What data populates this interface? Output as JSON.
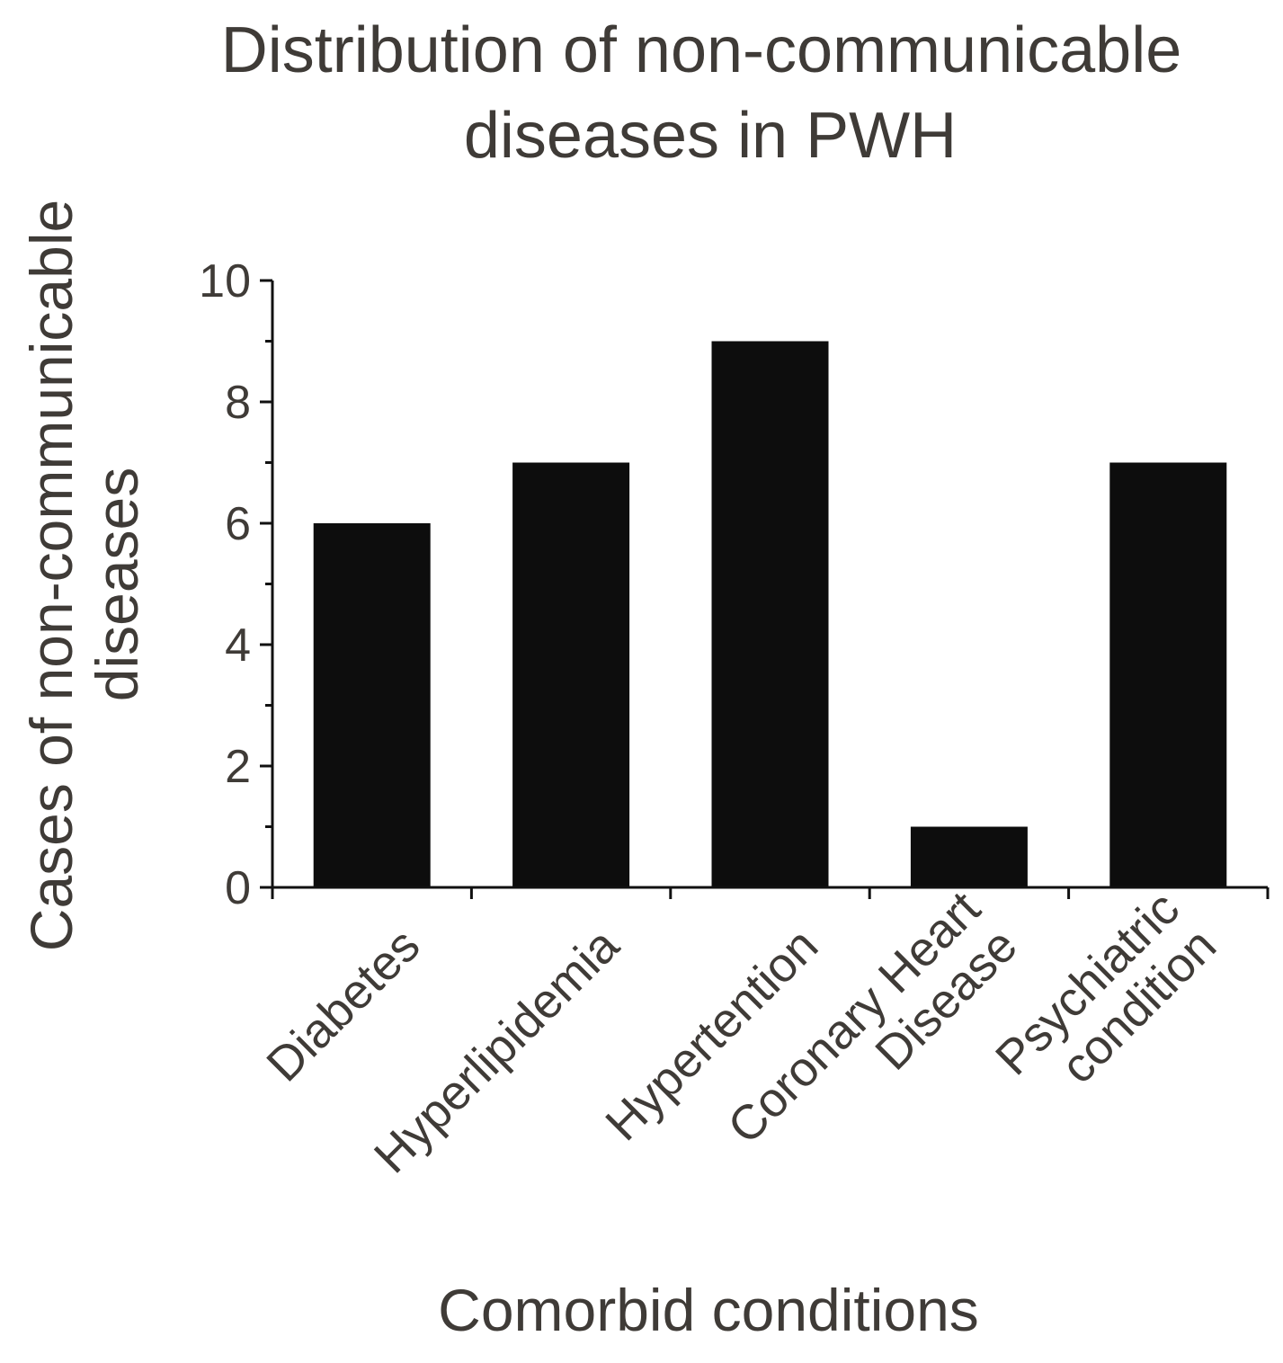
{
  "chart_data": {
    "type": "bar",
    "title_lines": [
      "Distribution of non-communicable",
      "diseases in PWH"
    ],
    "ylabel_lines": [
      "Cases of non-communicable",
      "diseases"
    ],
    "xlabel": "Comorbid conditions",
    "categories": [
      [
        "Diabetes"
      ],
      [
        "Hyperlipidemia"
      ],
      [
        "Hypertention"
      ],
      [
        "Coronary Heart",
        "Disease"
      ],
      [
        "Psychiatric",
        "condition"
      ]
    ],
    "values": [
      6,
      7,
      9,
      1,
      7
    ],
    "ylim": [
      0,
      10
    ],
    "y_ticks": [
      0,
      2,
      4,
      6,
      8,
      10
    ],
    "y_minor_ticks": [
      1,
      3,
      5,
      7,
      9
    ],
    "bar_color": "#0d0d0d",
    "text_color": "#3f3b37",
    "grid": false
  }
}
